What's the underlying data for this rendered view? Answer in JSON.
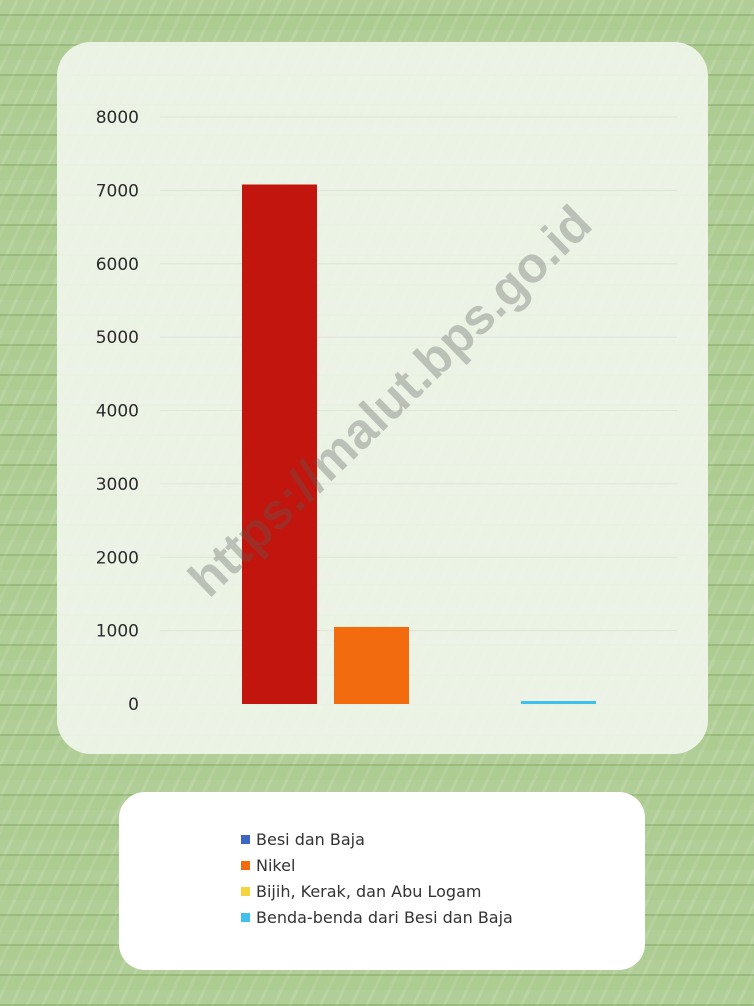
{
  "watermark": "https://malut.bps.go.id",
  "chart_data": {
    "type": "bar",
    "categories": [
      "Besi dan Baja",
      "Nikel",
      "Bijih, Kerak, dan Abu Logam",
      "Benda-benda dari Besi dan Baja"
    ],
    "values": [
      7080,
      1050,
      0,
      30
    ],
    "colors": [
      "#c2150d",
      "#f26b0f",
      "#f5d33b",
      "#3ec1ec"
    ],
    "ylim": [
      0,
      8000
    ],
    "yticks": [
      "0",
      "1000",
      "2000",
      "3000",
      "4000",
      "5000",
      "6000",
      "7000",
      "8000"
    ],
    "grid": true,
    "legend_position": "bottom",
    "legend": [
      {
        "label": "Besi dan Baja",
        "color": "#3d66c2"
      },
      {
        "label": "Nikel",
        "color": "#f26b0f"
      },
      {
        "label": "Bijih, Kerak, dan Abu Logam",
        "color": "#f5d33b"
      },
      {
        "label": "Benda-benda dari Besi dan Baja",
        "color": "#3ec1ec"
      }
    ]
  }
}
